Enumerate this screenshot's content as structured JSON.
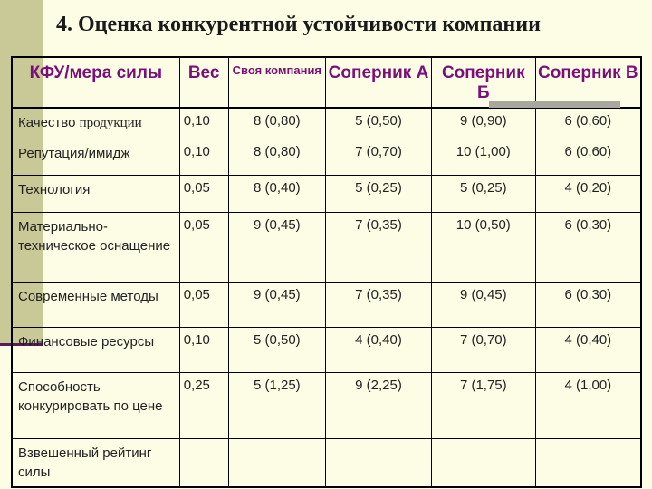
{
  "title": "4. Оценка конкурентной устойчивости компании",
  "table": {
    "headers": [
      "КФУ/мера силы",
      "Вес",
      "Своя компания",
      "Соперник А",
      "Соперник Б",
      "Соперник В"
    ],
    "rows": [
      {
        "label_main": "Качество ",
        "label_serif": "продукции",
        "cells": [
          "0,10",
          "8 (0,80)",
          "5 (0,50)",
          "9 (0,90)",
          "6 (0,60)"
        ]
      },
      {
        "label_main": "Репутация/имидж",
        "cells": [
          "0,10",
          "8 (0,80)",
          "7 (0,70)",
          "10 (1,00)",
          "6 (0,60)"
        ]
      },
      {
        "label_main": "Технология",
        "cells": [
          "0,05",
          "8 (0,40)",
          "5 (0,25)",
          "5 (0,25)",
          "4 (0,20)"
        ]
      },
      {
        "label_main": "Материально-техническое оснащение",
        "cells": [
          "0,05",
          "9 (0,45)",
          "7 (0,35)",
          "10 (0,50)",
          "6 (0,30)"
        ]
      },
      {
        "label_main": "Современные методы",
        "cells": [
          "0,05",
          "9 (0,45)",
          "7 (0,35)",
          "9 (0,45)",
          "6 (0,30)"
        ]
      },
      {
        "label_main": "Финансовые ресурсы",
        "cells": [
          "0,10",
          "5 (0,50)",
          "4 (0,40)",
          "7 (0,70)",
          "4 (0,40)"
        ]
      },
      {
        "label_main": "Способность конкурировать по цене",
        "cells": [
          "0,25",
          "5 (1,25)",
          "9 (2,25)",
          "7 (1,75)",
          "4 (1,00)"
        ]
      },
      {
        "label_main": "Взвешенный рейтинг силы",
        "cells": [
          "",
          "",
          "",
          "",
          ""
        ]
      }
    ]
  },
  "colors": {
    "header_text": "#7a0f7a",
    "background": "#fdfde6",
    "accent_bar": "#c9c897"
  }
}
